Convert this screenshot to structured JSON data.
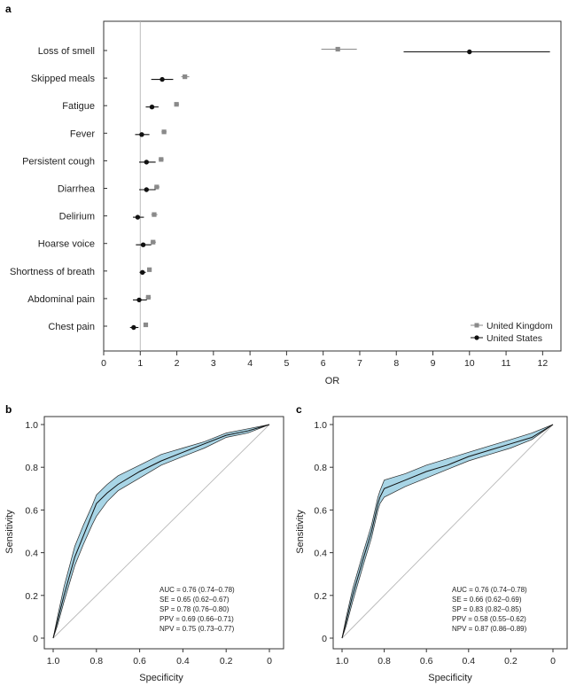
{
  "chart_data": [
    {
      "panel": "a",
      "type": "forest",
      "xlabel": "OR",
      "xlim": [
        0,
        12.5
      ],
      "xticks": [
        0,
        1,
        2,
        3,
        4,
        5,
        6,
        7,
        8,
        9,
        10,
        11,
        12
      ],
      "reference_line": 1,
      "categories": [
        "Loss of smell",
        "Skipped meals",
        "Fatigue",
        "Fever",
        "Persistent cough",
        "Diarrhea",
        "Delirium",
        "Hoarse voice",
        "Shortness of breath",
        "Abdominal pain",
        "Chest pain"
      ],
      "series": [
        {
          "name": "United Kingdom",
          "color": "#8a8a8a",
          "marker": "square",
          "or": [
            6.4,
            2.22,
            1.99,
            1.65,
            1.57,
            1.45,
            1.38,
            1.35,
            1.25,
            1.22,
            1.15
          ],
          "low": [
            5.95,
            2.12,
            1.93,
            1.58,
            1.5,
            1.38,
            1.3,
            1.28,
            1.2,
            1.15,
            1.1
          ],
          "high": [
            6.92,
            2.34,
            2.06,
            1.72,
            1.64,
            1.53,
            1.47,
            1.43,
            1.31,
            1.29,
            1.2
          ]
        },
        {
          "name": "United States",
          "color": "#111111",
          "marker": "circle",
          "or": [
            10.0,
            1.6,
            1.32,
            1.04,
            1.17,
            1.17,
            0.93,
            1.08,
            1.06,
            0.97,
            0.82
          ],
          "low": [
            8.2,
            1.3,
            1.15,
            0.86,
            0.97,
            0.97,
            0.8,
            0.88,
            0.98,
            0.8,
            0.72
          ],
          "high": [
            12.2,
            1.9,
            1.5,
            1.25,
            1.42,
            1.42,
            1.1,
            1.3,
            1.15,
            1.18,
            0.95
          ]
        }
      ],
      "legend": [
        "United Kingdom",
        "United States"
      ],
      "legend_position": "bottom-right"
    },
    {
      "panel": "b",
      "type": "line",
      "xlabel": "Specificity",
      "ylabel": "Sensitivity",
      "xlim": [
        1.0,
        0
      ],
      "ylim": [
        0,
        1.0
      ],
      "xticks": [
        "1.0",
        "0.8",
        "0.6",
        "0.4",
        "0.2",
        "0"
      ],
      "yticks": [
        "0",
        "0.2",
        "0.4",
        "0.6",
        "0.8",
        "1.0"
      ],
      "roc": {
        "specificity": [
          1.0,
          0.98,
          0.95,
          0.9,
          0.86,
          0.82,
          0.8,
          0.75,
          0.7,
          0.6,
          0.5,
          0.4,
          0.3,
          0.2,
          0.1,
          0.0
        ],
        "sensitivity": [
          0.0,
          0.08,
          0.2,
          0.38,
          0.48,
          0.58,
          0.63,
          0.68,
          0.72,
          0.78,
          0.83,
          0.87,
          0.91,
          0.95,
          0.97,
          1.0
        ],
        "band_low": [
          0.0,
          0.06,
          0.17,
          0.34,
          0.44,
          0.53,
          0.57,
          0.64,
          0.69,
          0.75,
          0.81,
          0.85,
          0.89,
          0.94,
          0.96,
          1.0
        ],
        "band_high": [
          0.0,
          0.1,
          0.24,
          0.43,
          0.53,
          0.62,
          0.67,
          0.72,
          0.76,
          0.81,
          0.86,
          0.89,
          0.92,
          0.96,
          0.98,
          1.0
        ]
      },
      "stats": [
        "AUC = 0.76 (0.74–0.78)",
        "SE = 0.65 (0.62–0.67)",
        "SP = 0.78 (0.76–0.80)",
        "PPV = 0.69 (0.66–0.71)",
        "NPV = 0.75 (0.73–0.77)"
      ],
      "band_color": "#a8d5e6"
    },
    {
      "panel": "c",
      "type": "line",
      "xlabel": "Specificity",
      "ylabel": "Sensitivity",
      "xlim": [
        1.0,
        0
      ],
      "ylim": [
        0,
        1.0
      ],
      "xticks": [
        "1.0",
        "0.8",
        "0.6",
        "0.4",
        "0.2",
        "0"
      ],
      "yticks": [
        "0",
        "0.2",
        "0.4",
        "0.6",
        "0.8",
        "1.0"
      ],
      "roc": {
        "specificity": [
          1.0,
          0.98,
          0.95,
          0.9,
          0.86,
          0.83,
          0.82,
          0.8,
          0.7,
          0.6,
          0.5,
          0.4,
          0.3,
          0.2,
          0.1,
          0.0
        ],
        "sensitivity": [
          0.0,
          0.08,
          0.2,
          0.37,
          0.5,
          0.63,
          0.66,
          0.7,
          0.74,
          0.78,
          0.81,
          0.85,
          0.88,
          0.91,
          0.94,
          1.0
        ],
        "band_low": [
          0.0,
          0.06,
          0.17,
          0.34,
          0.47,
          0.6,
          0.63,
          0.66,
          0.71,
          0.75,
          0.79,
          0.83,
          0.86,
          0.89,
          0.93,
          1.0
        ],
        "band_high": [
          0.0,
          0.1,
          0.23,
          0.4,
          0.53,
          0.66,
          0.69,
          0.74,
          0.77,
          0.81,
          0.84,
          0.87,
          0.9,
          0.93,
          0.96,
          1.0
        ]
      },
      "stats": [
        "AUC = 0.76 (0.74–0.78)",
        "SE = 0.66 (0.62–0.69)",
        "SP = 0.83 (0.82–0.85)",
        "PPV = 0.58 (0.55–0.62)",
        "NPV = 0.87 (0.86–0.89)"
      ],
      "band_color": "#a8d5e6"
    }
  ]
}
